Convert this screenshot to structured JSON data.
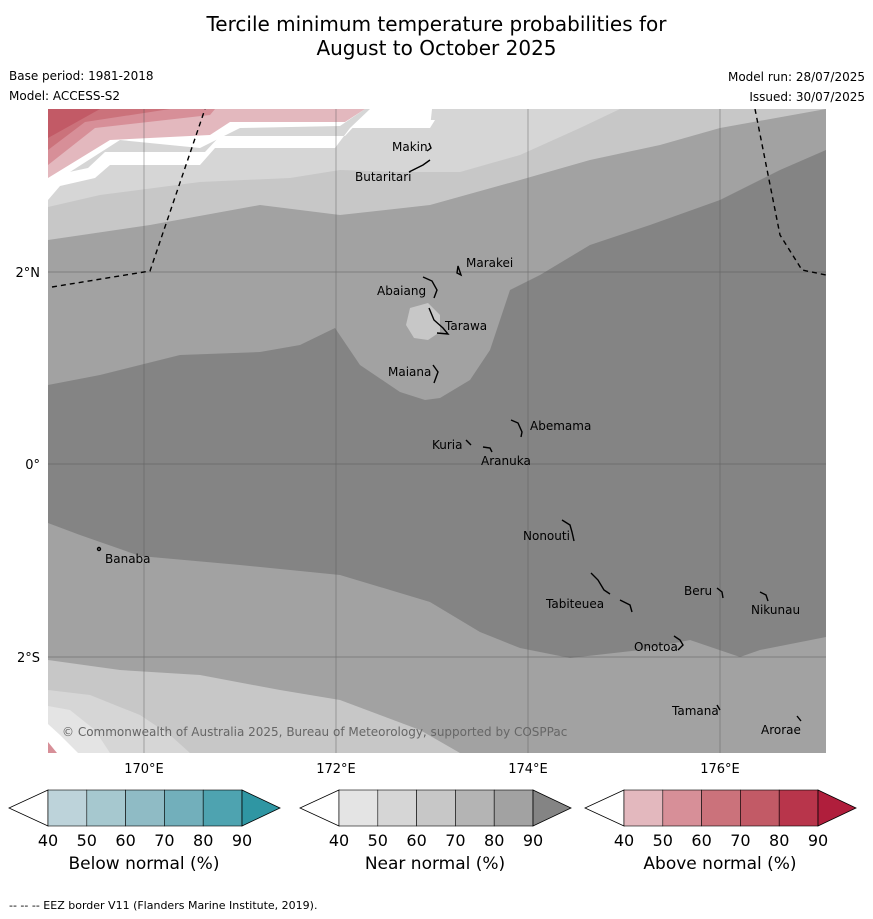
{
  "title_line1": "Tercile minimum temperature probabilities for",
  "title_line2": "August to October 2025",
  "base_period": "Base period: 1981-2018",
  "model": "Model: ACCESS-S2",
  "model_run": "Model run: 28/07/2025",
  "issued": "Issued: 30/07/2025",
  "copyright": "© Commonwealth of Australia 2025, Bureau of Meteorology, supported by COSPPac",
  "lat_labels": [
    "2°N",
    "0°",
    "2°S"
  ],
  "lon_labels": [
    "170°E",
    "172°E",
    "174°E",
    "176°E"
  ],
  "places": [
    {
      "name": "Makin"
    },
    {
      "name": "Butaritari"
    },
    {
      "name": "Marakei"
    },
    {
      "name": "Abaiang"
    },
    {
      "name": "Tarawa"
    },
    {
      "name": "Maiana"
    },
    {
      "name": "Abemama"
    },
    {
      "name": "Kuria"
    },
    {
      "name": "Aranuka"
    },
    {
      "name": "Nonouti"
    },
    {
      "name": "Banaba"
    },
    {
      "name": "Beru"
    },
    {
      "name": "Nikunau"
    },
    {
      "name": "Tabiteuea"
    },
    {
      "name": "Onotoa"
    },
    {
      "name": "Tamana"
    },
    {
      "name": "Arorae"
    }
  ],
  "colorbars": [
    {
      "title": "Below normal (%)",
      "ticks": [
        "40",
        "50",
        "60",
        "70",
        "80",
        "90"
      ],
      "colors": [
        "#ffffff",
        "#bdd3da",
        "#a6c8cf",
        "#8fbbc5",
        "#72afbb",
        "#4ea3b0",
        "#2f96a3"
      ]
    },
    {
      "title": "Near normal (%)",
      "ticks": [
        "40",
        "50",
        "60",
        "70",
        "80",
        "90"
      ],
      "colors": [
        "#ffffff",
        "#e4e4e4",
        "#d6d6d6",
        "#c7c7c7",
        "#b4b4b4",
        "#a2a2a2",
        "#848484"
      ]
    },
    {
      "title": "Above normal (%)",
      "ticks": [
        "40",
        "50",
        "60",
        "70",
        "80",
        "90"
      ],
      "colors": [
        "#ffffff",
        "#e3b8be",
        "#d78f98",
        "#cb727b",
        "#c25a66",
        "#b8354b",
        "#b01e3c"
      ]
    }
  ],
  "footer": "--  --  -- EEZ border V11 (Flanders Marine Institute, 2019)."
}
